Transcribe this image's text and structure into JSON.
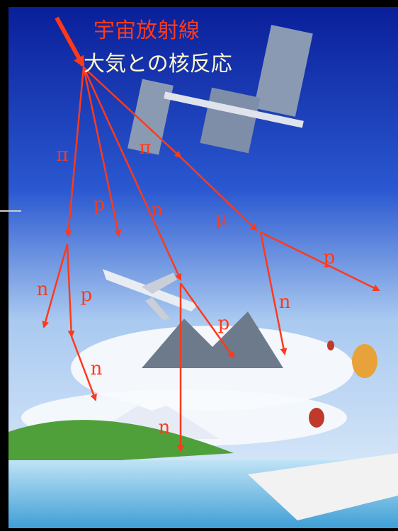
{
  "header": {
    "cosmic_ray": "宇宙放射線",
    "nuclear_reaction": "大気との核反応"
  },
  "particles": [
    "π",
    "π",
    "p",
    "n",
    "μ",
    "p",
    "n",
    "p",
    "n",
    "p",
    "n",
    "n"
  ]
}
